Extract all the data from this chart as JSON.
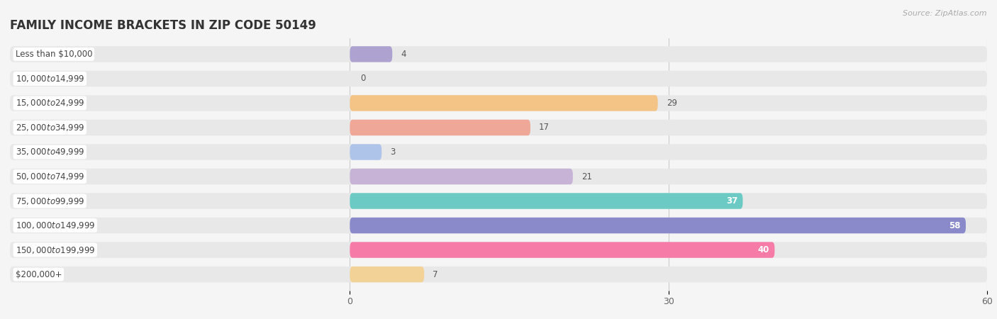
{
  "title": "FAMILY INCOME BRACKETS IN ZIP CODE 50149",
  "source": "Source: ZipAtlas.com",
  "categories": [
    "Less than $10,000",
    "$10,000 to $14,999",
    "$15,000 to $24,999",
    "$25,000 to $34,999",
    "$35,000 to $49,999",
    "$50,000 to $74,999",
    "$75,000 to $99,999",
    "$100,000 to $149,999",
    "$150,000 to $199,999",
    "$200,000+"
  ],
  "values": [
    4,
    0,
    29,
    17,
    3,
    21,
    37,
    58,
    40,
    7
  ],
  "bar_colors": [
    "#a89cce",
    "#f4a0b5",
    "#f5c07a",
    "#f0a090",
    "#a8c0e8",
    "#c4aed4",
    "#5ec8c0",
    "#8080c8",
    "#f870a0",
    "#f5d090"
  ],
  "background_color": "#f5f5f5",
  "bar_background_color": "#e8e8e8",
  "label_bg_color": "#ffffff",
  "xlim": [
    0,
    60
  ],
  "xticks": [
    0,
    30,
    60
  ],
  "title_fontsize": 12,
  "label_fontsize": 8.5,
  "value_fontsize": 8.5,
  "value_inside_threshold": 30
}
